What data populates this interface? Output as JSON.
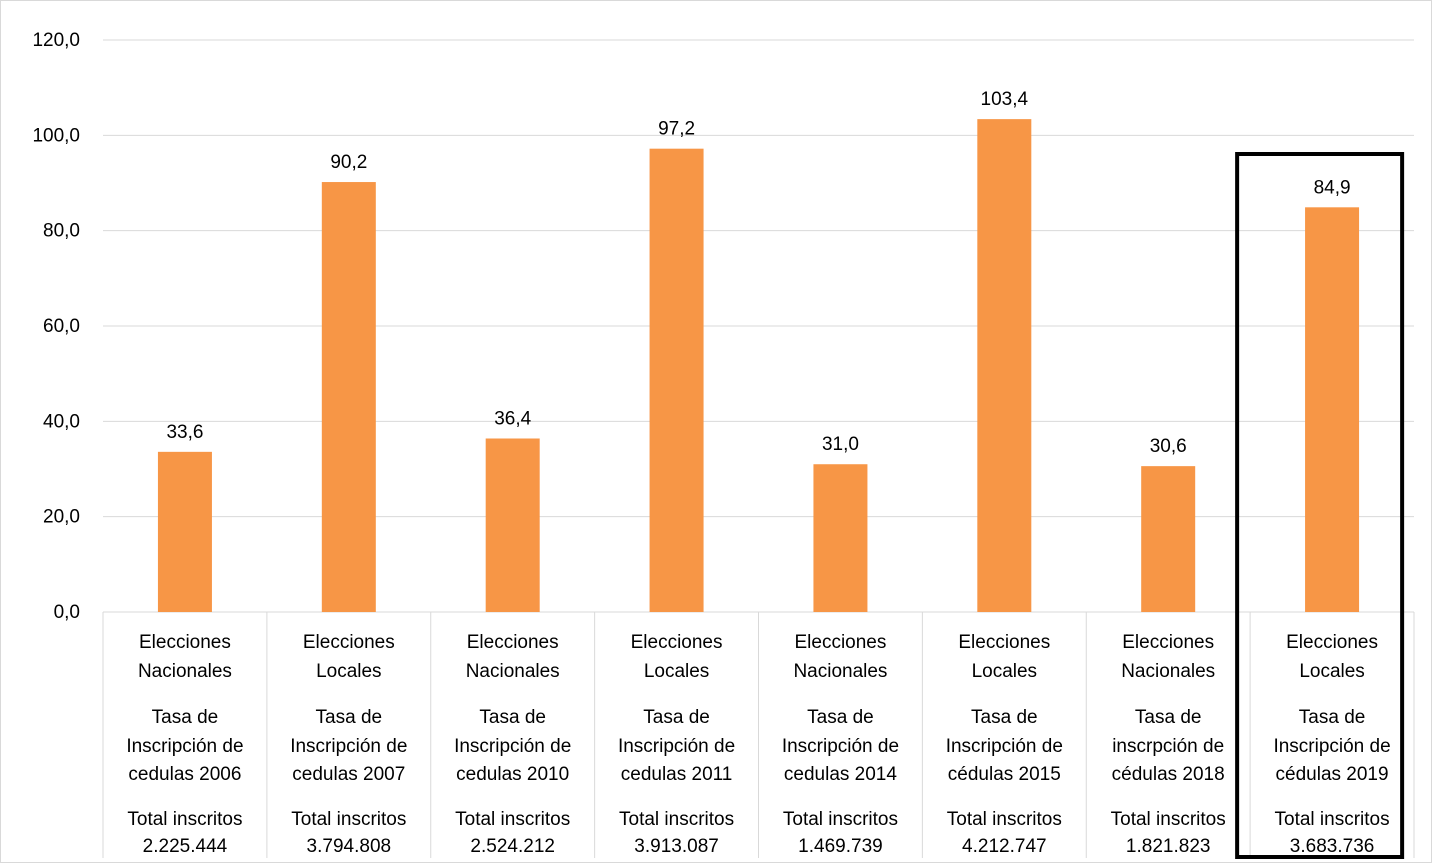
{
  "chart_data": {
    "type": "bar",
    "ylim": [
      0,
      120
    ],
    "yticks": [
      "0,0",
      "20,0",
      "40,0",
      "60,0",
      "80,0",
      "100,0",
      "120,0"
    ],
    "grid": true,
    "bar_color": "#f79646",
    "highlight_border_color": "#000000",
    "highlighted_category_index": 7,
    "values": [
      33.6,
      90.2,
      36.4,
      97.2,
      31.0,
      103.4,
      30.6,
      84.9
    ],
    "value_labels": [
      "33,6",
      "90,2",
      "36,4",
      "97,2",
      "31,0",
      "103,4",
      "30,6",
      "84,9"
    ],
    "categories": [
      {
        "group_line1": "Elecciones",
        "group_line2": "Nacionales",
        "rate_line1": "Tasa de",
        "rate_line2": "Inscripción de",
        "rate_line3": "cedulas 2006",
        "total_line1": "Total inscritos",
        "total_line2": "2.225.444"
      },
      {
        "group_line1": "Elecciones",
        "group_line2": "Locales",
        "rate_line1": "Tasa de",
        "rate_line2": "Inscripción de",
        "rate_line3": "cedulas 2007",
        "total_line1": "Total inscritos",
        "total_line2": "3.794.808"
      },
      {
        "group_line1": "Elecciones",
        "group_line2": "Nacionales",
        "rate_line1": "Tasa de",
        "rate_line2": "Inscripción de",
        "rate_line3": "cedulas 2010",
        "total_line1": "Total inscritos",
        "total_line2": "2.524.212"
      },
      {
        "group_line1": "Elecciones",
        "group_line2": "Locales",
        "rate_line1": "Tasa de",
        "rate_line2": "Inscripción de",
        "rate_line3": "cedulas 2011",
        "total_line1": "Total inscritos",
        "total_line2": "3.913.087"
      },
      {
        "group_line1": "Elecciones",
        "group_line2": "Nacionales",
        "rate_line1": "Tasa de",
        "rate_line2": "Inscripción de",
        "rate_line3": "cedulas 2014",
        "total_line1": "Total inscritos",
        "total_line2": "1.469.739"
      },
      {
        "group_line1": "Elecciones",
        "group_line2": "Locales",
        "rate_line1": "Tasa de",
        "rate_line2": "Inscripción de",
        "rate_line3": "cédulas 2015",
        "total_line1": "Total inscritos",
        "total_line2": "4.212.747"
      },
      {
        "group_line1": "Elecciones",
        "group_line2": "Nacionales",
        "rate_line1": "Tasa de",
        "rate_line2": "inscrpción de",
        "rate_line3": "cédulas 2018",
        "total_line1": "Total inscritos",
        "total_line2": "1.821.823"
      },
      {
        "group_line1": "Elecciones",
        "group_line2": "Locales",
        "rate_line1": "Tasa de",
        "rate_line2": "Inscripción de",
        "rate_line3": "cédulas 2019",
        "total_line1": "Total inscritos",
        "total_line2": "3.683.736"
      }
    ]
  }
}
